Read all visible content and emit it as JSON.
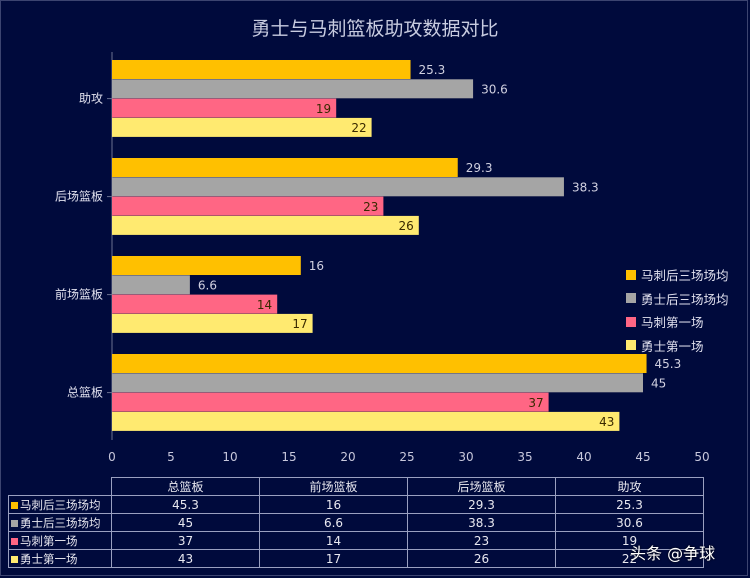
{
  "chart_data": {
    "type": "bar",
    "orientation": "horizontal",
    "title": "勇士与马刺篮板助攻数据对比",
    "categories": [
      "助攻",
      "后场篮板",
      "前场篮板",
      "总篮板"
    ],
    "series": [
      {
        "name": "马刺后三场场均",
        "table_name": "马刺后三场场均",
        "color": "#ffc000",
        "values": [
          25.3,
          29.3,
          16,
          45.3
        ]
      },
      {
        "name": "勇士后三场场均",
        "table_name": "勇士后三场场均",
        "color": "#a5a5a5",
        "values": [
          30.6,
          38.3,
          6.6,
          45
        ]
      },
      {
        "name": "马刺第一场",
        "table_name": "马刺第一场",
        "color": "#ff6684",
        "values": [
          19,
          23,
          14,
          37
        ]
      },
      {
        "name": "勇士第一场",
        "table_name": "勇士第一场",
        "color": "#ffea70",
        "values": [
          22,
          26,
          17,
          43
        ]
      }
    ],
    "xlim": [
      0,
      50
    ],
    "xticks": [
      0,
      5,
      10,
      15,
      20,
      25,
      30,
      35,
      40,
      45,
      50
    ],
    "grid": false,
    "legend_position": "right",
    "table": {
      "columns": [
        "总篮板",
        "前场篮板",
        "后场篮板",
        "助攻"
      ],
      "rows": [
        [
          "45.3",
          "16",
          "29.3",
          "25.3"
        ],
        [
          "45",
          "6.6",
          "38.3",
          "30.6"
        ],
        [
          "37",
          "14",
          "23",
          "19"
        ],
        [
          "43",
          "17",
          "26",
          "22"
        ]
      ]
    }
  },
  "watermark": "头条 @争球"
}
